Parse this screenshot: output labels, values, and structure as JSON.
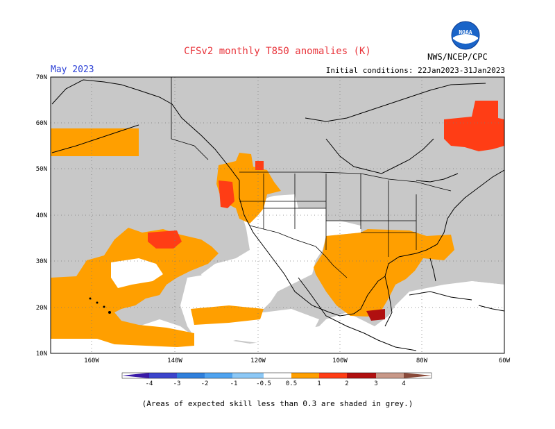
{
  "header": {
    "title": "CFSv2 monthly T850 anomalies (K)",
    "month": "May 2023",
    "initial_conditions": "Initial conditions: 22Jan2023-31Jan2023",
    "agency": "NWS/NCEP/CPC",
    "logo_text": "NOAA"
  },
  "map": {
    "lat_labels": [
      "70N",
      "60N",
      "50N",
      "40N",
      "30N",
      "20N",
      "10N"
    ],
    "lon_labels": [
      "160W",
      "140W",
      "120W",
      "100W",
      "80W",
      "60W"
    ],
    "colors": {
      "grey": "#c8c8c8",
      "orange": "#ff9f00",
      "red_orange": "#ff3d15",
      "dark_red": "#b01010"
    }
  },
  "colorbar": {
    "labels": [
      "-4",
      "-3",
      "-2",
      "-1",
      "-0.5",
      "0.5",
      "1",
      "2",
      "3",
      "4"
    ],
    "colors": [
      "#3a1aa8",
      "#3c44cc",
      "#2f7fdc",
      "#4fa3f0",
      "#8cc8f6",
      "#ffffff",
      "#ff9f00",
      "#ff3d15",
      "#b01010",
      "#c89888",
      "#8a4a3a"
    ]
  },
  "footer": {
    "note": "(Areas of expected skill less than 0.3 are shaded in grey.)"
  }
}
